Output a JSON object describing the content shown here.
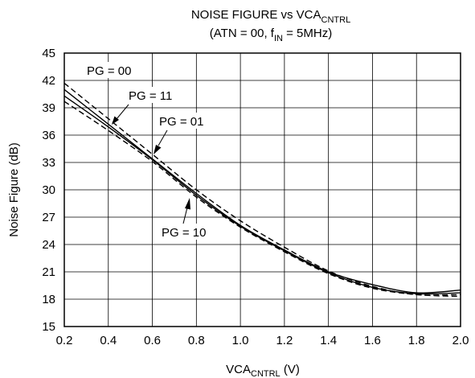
{
  "chart_data": {
    "type": "line",
    "title": {
      "line1_main": "NOISE FIGURE vs VCA",
      "line1_sub": "CNTRL",
      "line2_a": "(ATN = 00, f",
      "line2_sub": "IN",
      "line2_b": " = 5MHz)"
    },
    "xlabel": {
      "main": "VCA",
      "sub": "CNTRL",
      "tail": " (V)"
    },
    "ylabel": "Noise Figure (dB)",
    "xlim": [
      0.2,
      2.0
    ],
    "ylim": [
      15,
      45
    ],
    "xticks": [
      "0.2",
      "0.4",
      "0.6",
      "0.8",
      "1.0",
      "1.2",
      "1.4",
      "1.6",
      "1.8",
      "2.0"
    ],
    "yticks": [
      "15",
      "18",
      "21",
      "24",
      "27",
      "30",
      "33",
      "36",
      "39",
      "42",
      "45"
    ],
    "grid": true,
    "x": [
      0.2,
      0.4,
      0.6,
      0.8,
      1.0,
      1.2,
      1.4,
      1.6,
      1.8,
      2.0
    ],
    "series": [
      {
        "name": "PG = 00",
        "style": "dashed",
        "values": [
          41.7,
          37.8,
          33.9,
          30.0,
          26.6,
          23.7,
          21.1,
          19.4,
          18.5,
          18.5
        ]
      },
      {
        "name": "PG = 11",
        "style": "solid",
        "values": [
          41.0,
          37.2,
          33.4,
          29.6,
          26.1,
          23.4,
          21.0,
          19.6,
          18.7,
          19.0
        ]
      },
      {
        "name": "PG = 01",
        "style": "dashed",
        "values": [
          39.7,
          36.5,
          33.1,
          29.2,
          25.9,
          23.2,
          20.8,
          19.2,
          18.5,
          18.3
        ]
      },
      {
        "name": "PG = 10",
        "style": "solid",
        "values": [
          40.3,
          36.9,
          33.3,
          29.4,
          26.0,
          23.3,
          20.9,
          19.3,
          18.6,
          18.7
        ]
      }
    ],
    "annotations": [
      "PG = 00",
      "PG = 11",
      "PG = 01",
      "PG = 10"
    ]
  }
}
